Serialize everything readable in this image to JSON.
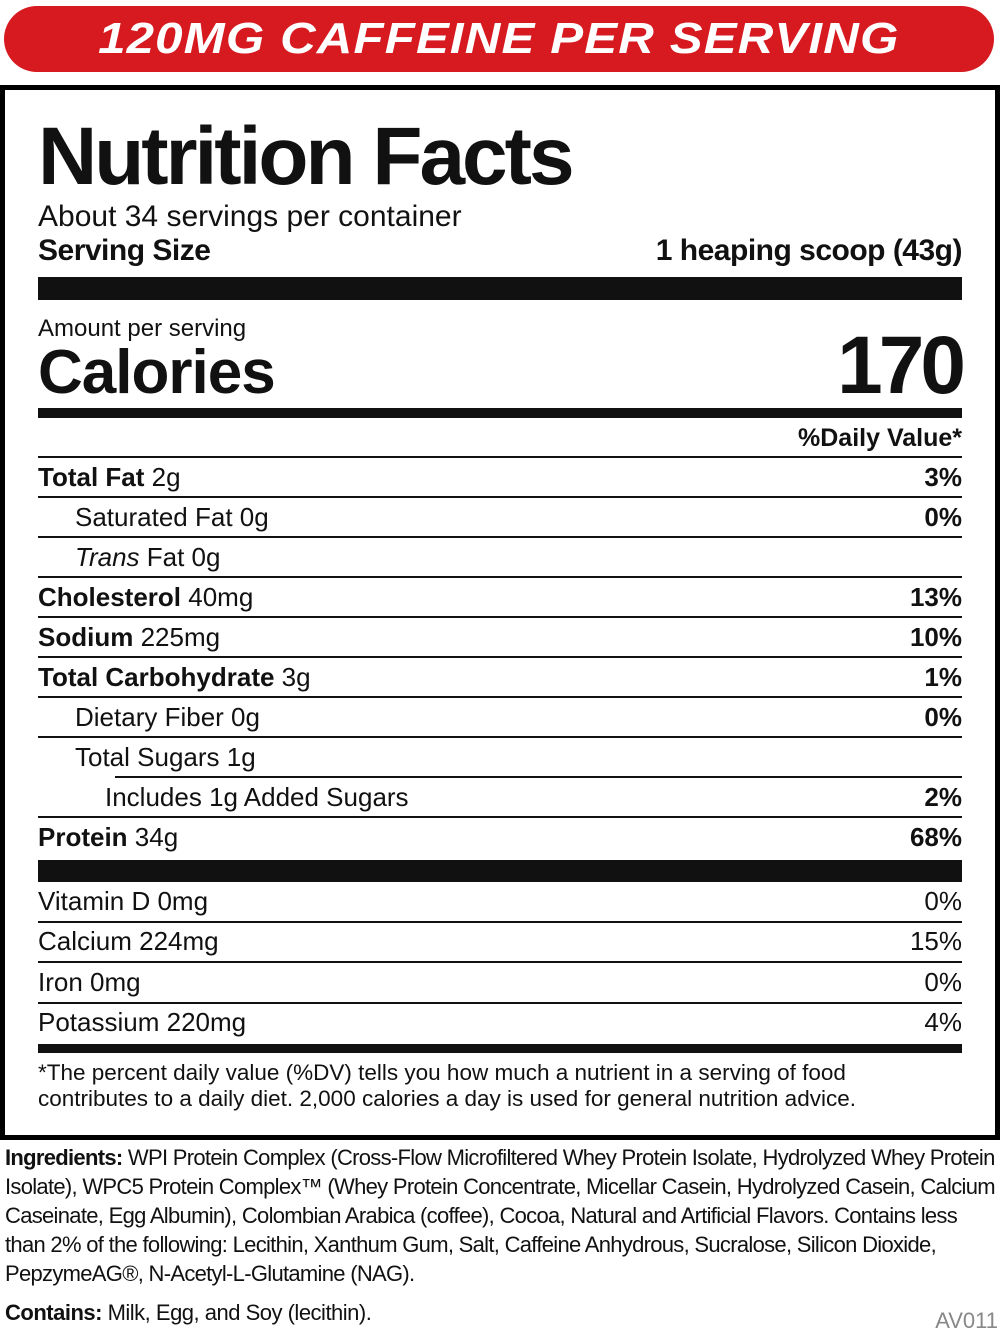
{
  "banner": {
    "text": "120MG CAFFEINE PER SERVING",
    "color": "#d71920"
  },
  "label": {
    "title": "Nutrition Facts",
    "servings": "About 34 servings per container",
    "serving_size_label": "Serving Size",
    "serving_size_value": "1 heaping scoop (43g)",
    "amount_per_serving": "Amount per serving",
    "calories_label": "Calories",
    "calories_value": "170",
    "dv_header": "%Daily Value*",
    "nutrients": [
      {
        "name": "Total Fat",
        "amount": " 2g",
        "dv": "3%"
      },
      {
        "name": "Saturated Fat 0g",
        "dv": "0%"
      },
      {
        "name": "Trans",
        "amount": " Fat 0g",
        "dv": ""
      },
      {
        "name": "Cholesterol",
        "amount": " 40mg",
        "dv": "13%"
      },
      {
        "name": "Sodium",
        "amount": " 225mg",
        "dv": "10%"
      },
      {
        "name": "Total Carbohydrate",
        "amount": " 3g",
        "dv": "1%"
      },
      {
        "name": "Dietary Fiber 0g",
        "dv": "0%"
      },
      {
        "name": "Total Sugars 1g",
        "dv": ""
      },
      {
        "name": "Includes 1g Added Sugars",
        "dv": "2%"
      },
      {
        "name": "Protein",
        "amount": " 34g",
        "dv": "68%"
      }
    ],
    "vitamins": [
      {
        "name": "Vitamin D 0mg",
        "dv": "0%"
      },
      {
        "name": "Calcium 224mg",
        "dv": "15%"
      },
      {
        "name": "Iron 0mg",
        "dv": "0%"
      },
      {
        "name": "Potassium 220mg",
        "dv": "4%"
      }
    ],
    "footnote": "*The percent daily value (%DV) tells you how much a nutrient in a serving of food contributes to a daily diet. 2,000 calories a day is used for general nutrition advice."
  },
  "ingredients": {
    "label": "Ingredients:",
    "text": " WPI Protein Complex (Cross-Flow Microfiltered Whey Protein Isolate, Hydrolyzed Whey Protein Isolate), WPC5 Protein Complex™ (Whey Protein Concentrate, Micellar Casein, Hydrolyzed Casein, Calcium Caseinate, Egg Albumin), Colombian Arabica (coffee), Cocoa, Natural and Artificial Flavors. Contains less than 2% of the following: Lecithin, Xanthum Gum, Salt, Caffeine Anhydrous, Sucralose, Silicon Dioxide, PepzymeAG®, N-Acetyl-L-Glutamine (NAG)."
  },
  "contains": {
    "label": "Contains:",
    "text": " Milk, Egg, and Soy (lecithin)."
  },
  "code": "AV011"
}
